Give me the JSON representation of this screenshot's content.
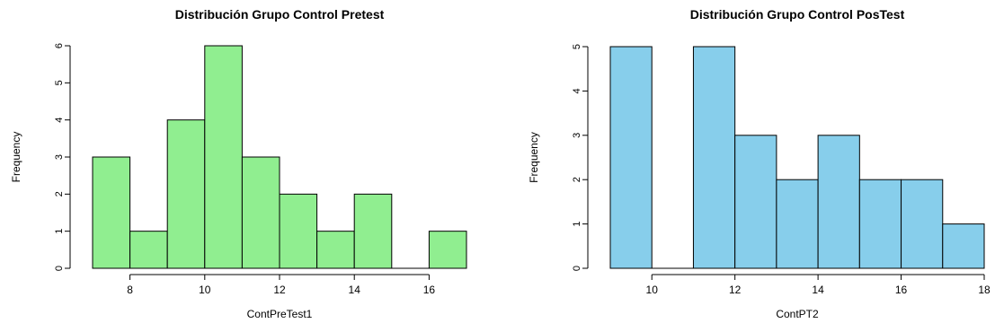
{
  "chart_data": [
    {
      "type": "bar",
      "title": "Distribución Grupo Control Pretest",
      "xlabel": "ContPreTest1",
      "ylabel": "Frequency",
      "bins": [
        [
          7,
          8
        ],
        [
          8,
          9
        ],
        [
          9,
          10
        ],
        [
          10,
          11
        ],
        [
          11,
          12
        ],
        [
          12,
          13
        ],
        [
          13,
          14
        ],
        [
          14,
          15
        ],
        [
          15,
          16
        ],
        [
          16,
          17
        ]
      ],
      "values": [
        3,
        1,
        4,
        6,
        3,
        2,
        1,
        2,
        0,
        1
      ],
      "xticks": [
        8,
        10,
        12,
        14,
        16
      ],
      "yticks": [
        0,
        1,
        2,
        3,
        4,
        5,
        6
      ],
      "xlim": [
        7,
        17
      ],
      "ylim": [
        0,
        6
      ],
      "bar_color": "#90EE90",
      "grid": false
    },
    {
      "type": "bar",
      "title": "Distribución Grupo Control PosTest",
      "xlabel": "ContPT2",
      "ylabel": "Frequency",
      "bins": [
        [
          9,
          10
        ],
        [
          10,
          11
        ],
        [
          11,
          12
        ],
        [
          12,
          13
        ],
        [
          13,
          14
        ],
        [
          14,
          15
        ],
        [
          15,
          16
        ],
        [
          16,
          17
        ],
        [
          17,
          18
        ]
      ],
      "values": [
        5,
        0,
        5,
        3,
        2,
        3,
        2,
        2,
        1
      ],
      "xticks": [
        10,
        12,
        14,
        16,
        18
      ],
      "yticks": [
        0,
        1,
        2,
        3,
        4,
        5
      ],
      "xlim": [
        9,
        18
      ],
      "ylim": [
        0,
        5
      ],
      "bar_color": "#87CEEB",
      "grid": false
    }
  ]
}
